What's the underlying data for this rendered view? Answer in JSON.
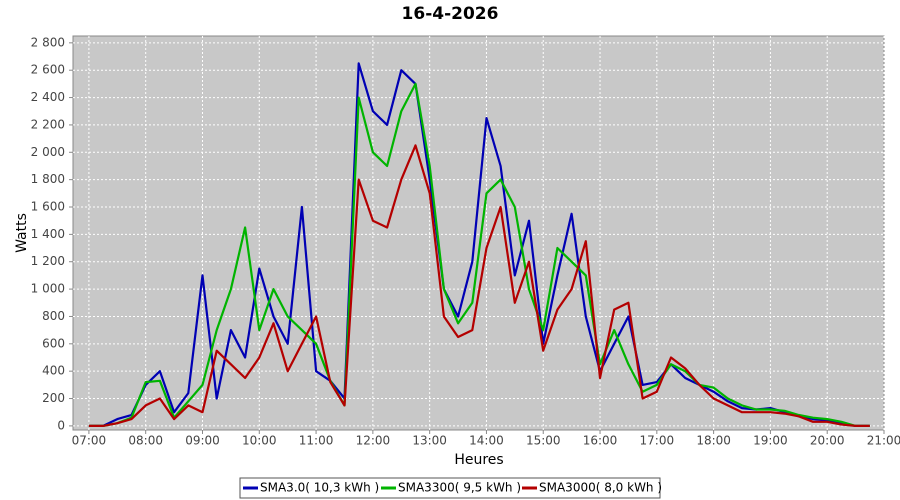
{
  "chart_data": {
    "type": "line",
    "title": "16-4-2026",
    "y_label": "Watts",
    "x_label": "Heures",
    "x": [
      7.0,
      7.25,
      7.5,
      7.75,
      8.0,
      8.25,
      8.5,
      8.75,
      9.0,
      9.25,
      9.5,
      9.75,
      10.0,
      10.25,
      10.5,
      10.75,
      11.0,
      11.25,
      11.5,
      11.75,
      12.0,
      12.25,
      12.5,
      12.75,
      13.0,
      13.25,
      13.5,
      13.75,
      14.0,
      14.25,
      14.5,
      14.75,
      15.0,
      15.25,
      15.5,
      15.75,
      16.0,
      16.25,
      16.5,
      16.75,
      17.0,
      17.25,
      17.5,
      17.75,
      18.0,
      18.25,
      18.5,
      18.75,
      19.0,
      19.25,
      19.5,
      19.75,
      20.0,
      20.25,
      20.5,
      20.75
    ],
    "series": [
      {
        "name": "SMA3.0( 10,3 kWh )",
        "color": "#0000b4",
        "values": [
          0,
          0,
          50,
          80,
          300,
          400,
          100,
          240,
          1100,
          200,
          700,
          500,
          1150,
          800,
          600,
          1600,
          400,
          330,
          200,
          2650,
          2300,
          2200,
          2600,
          2500,
          1800,
          1000,
          800,
          1200,
          2250,
          1900,
          1100,
          1500,
          600,
          1100,
          1550,
          800,
          400,
          600,
          800,
          300,
          320,
          450,
          350,
          300,
          250,
          180,
          130,
          120,
          130,
          100,
          70,
          50,
          40,
          20,
          0,
          0
        ]
      },
      {
        "name": "SMA3300( 9,5 kWh )",
        "color": "#00b400",
        "values": [
          0,
          0,
          20,
          60,
          320,
          330,
          60,
          180,
          300,
          700,
          1000,
          1450,
          700,
          1000,
          800,
          700,
          600,
          330,
          150,
          2400,
          2000,
          1900,
          2300,
          2500,
          1900,
          1000,
          750,
          900,
          1700,
          1800,
          1600,
          1000,
          700,
          1300,
          1200,
          1100,
          450,
          700,
          450,
          250,
          300,
          450,
          400,
          300,
          280,
          200,
          150,
          120,
          120,
          110,
          80,
          60,
          50,
          30,
          0,
          0
        ]
      },
      {
        "name": "SMA3000( 8,0 kWh )",
        "color": "#b40000",
        "values": [
          0,
          0,
          20,
          50,
          150,
          200,
          50,
          150,
          100,
          550,
          450,
          350,
          500,
          750,
          400,
          600,
          800,
          320,
          150,
          1800,
          1500,
          1450,
          1800,
          2050,
          1700,
          800,
          650,
          700,
          1300,
          1600,
          900,
          1200,
          550,
          850,
          1000,
          1350,
          350,
          850,
          900,
          200,
          250,
          500,
          420,
          300,
          200,
          150,
          100,
          100,
          100,
          90,
          70,
          30,
          30,
          10,
          0,
          0
        ]
      }
    ],
    "xlim": [
      6.72,
      21.0
    ],
    "xticks": [
      {
        "value": 7,
        "label": "07:00"
      },
      {
        "value": 8,
        "label": "08:00"
      },
      {
        "value": 9,
        "label": "09:00"
      },
      {
        "value": 10,
        "label": "10:00"
      },
      {
        "value": 11,
        "label": "11:00"
      },
      {
        "value": 12,
        "label": "12:00"
      },
      {
        "value": 13,
        "label": "13:00"
      },
      {
        "value": 14,
        "label": "14:00"
      },
      {
        "value": 15,
        "label": "15:00"
      },
      {
        "value": 16,
        "label": "16:00"
      },
      {
        "value": 17,
        "label": "17:00"
      },
      {
        "value": 18,
        "label": "18:00"
      },
      {
        "value": 19,
        "label": "19:00"
      },
      {
        "value": 20,
        "label": "20:00"
      },
      {
        "value": 21,
        "label": "21:00"
      }
    ],
    "ylim": [
      -30,
      2850
    ],
    "yticks": [
      0,
      200,
      400,
      600,
      800,
      {
        "value": 1000,
        "label": "1 000"
      },
      {
        "value": 1200,
        "label": "1 200"
      },
      {
        "value": 1400,
        "label": "1 400"
      },
      {
        "value": 1600,
        "label": "1 600"
      },
      {
        "value": 1800,
        "label": "1 800"
      },
      {
        "value": 2000,
        "label": "2 000"
      },
      {
        "value": 2200,
        "label": "2 200"
      },
      {
        "value": 2400,
        "label": "2 400"
      },
      {
        "value": 2600,
        "label": "2 600"
      },
      {
        "value": 2800,
        "label": "2 800"
      }
    ],
    "grid": true
  }
}
